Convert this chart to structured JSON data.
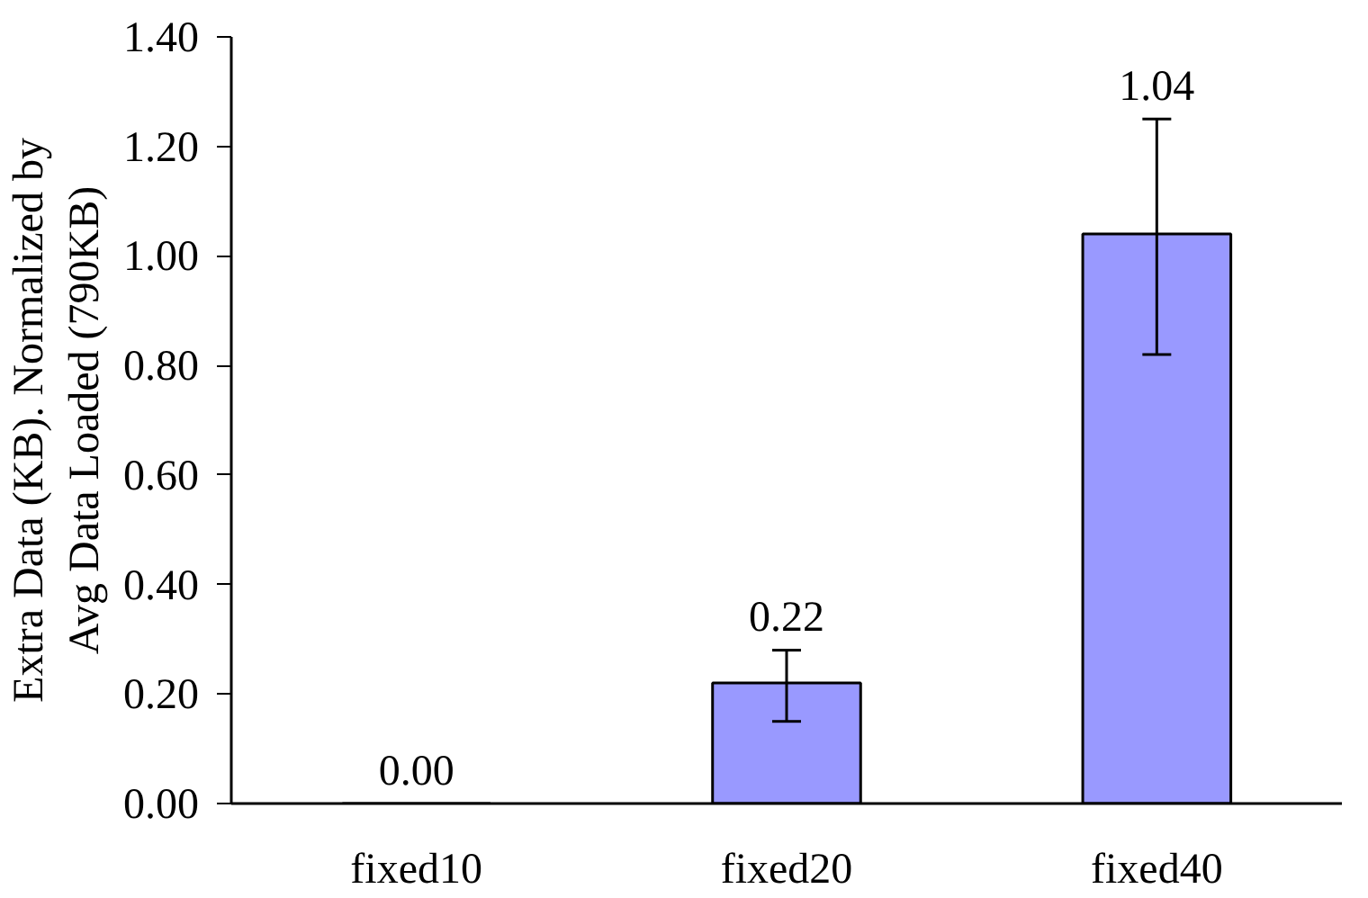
{
  "chart_data": {
    "type": "bar",
    "ylabel": "Extra Data (KB). Normalized by\nAvg Data Loaded (790KB)",
    "categories": [
      "fixed10",
      "fixed20",
      "fixed40"
    ],
    "values": [
      0.0,
      0.22,
      1.04
    ],
    "errors": [
      null,
      [
        0.15,
        0.28
      ],
      [
        0.82,
        1.25
      ]
    ],
    "color": "#9999ff",
    "ylim": [
      0,
      1.4
    ],
    "yticks": [
      {
        "value": 0,
        "label": "0.00"
      },
      {
        "value": 0.2,
        "label": "0.20"
      },
      {
        "value": 0.4,
        "label": "0.40"
      },
      {
        "value": 0.6,
        "label": "0.60"
      },
      {
        "value": 0.8,
        "label": "0.80"
      },
      {
        "value": 1.0,
        "label": "1.00"
      },
      {
        "value": 1.2,
        "label": "1.20"
      },
      {
        "value": 1.4,
        "label": "1.40"
      }
    ],
    "value_labels": [
      "0.00",
      "0.22",
      "1.04"
    ],
    "grid": false
  }
}
